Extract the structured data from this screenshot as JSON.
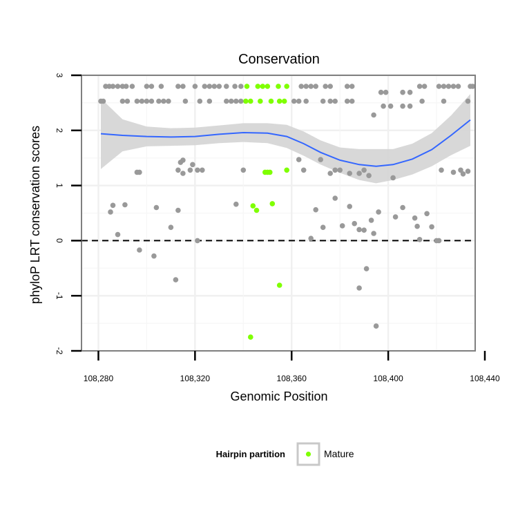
{
  "chart_data": {
    "type": "scatter",
    "title": "Conservation",
    "xlabel": "Genomic Position",
    "ylabel": "phyloP LRT conservation scores",
    "xlim": [
      108273,
      108436
    ],
    "ylim": [
      -2,
      3
    ],
    "xticks": [
      108280,
      108320,
      108360,
      108400,
      108440
    ],
    "xtick_labels": [
      "108,280",
      "108,320",
      "108,360",
      "108,400",
      "108,440"
    ],
    "yticks": [
      -2,
      -1,
      0,
      1,
      2,
      3
    ],
    "ytick_labels": [
      "-2",
      "-1",
      "0",
      "1",
      "2",
      "3"
    ],
    "grid": true,
    "reference_line": {
      "y": 0,
      "style": "dashed"
    },
    "legend": {
      "title": "Hairpin partition",
      "position": "bottom",
      "entries": [
        {
          "label": "Mature",
          "color": "#7fff00"
        }
      ]
    },
    "colors": {
      "background": "#ffffff",
      "other_points": "#999999",
      "mature_points": "#7fff00",
      "smooth_line": "#3366ff",
      "ribbon": "#d4d4d4"
    },
    "series": [
      {
        "name": "Mature",
        "points": [
          [
            108341.5,
            2.8
          ],
          [
            108346,
            2.8
          ],
          [
            108348,
            2.8
          ],
          [
            108350,
            2.8
          ],
          [
            108354.5,
            2.8
          ],
          [
            108358,
            2.8
          ],
          [
            108341,
            2.53
          ],
          [
            108343,
            2.53
          ],
          [
            108347,
            2.53
          ],
          [
            108351.5,
            2.53
          ],
          [
            108355,
            2.53
          ],
          [
            108357,
            2.53
          ],
          [
            108349,
            1.24
          ],
          [
            108350,
            1.24
          ],
          [
            108351,
            1.24
          ],
          [
            108358,
            1.28
          ],
          [
            108344,
            0.63
          ],
          [
            108345.5,
            0.55
          ],
          [
            108352,
            0.67
          ],
          [
            108355,
            -0.81
          ],
          [
            108343,
            -1.75
          ]
        ]
      },
      {
        "name": "",
        "points": [
          [
            108283,
            2.8
          ],
          [
            108284.5,
            2.8
          ],
          [
            108286,
            2.8
          ],
          [
            108288,
            2.8
          ],
          [
            108290,
            2.8
          ],
          [
            108291.5,
            2.8
          ],
          [
            108294,
            2.8
          ],
          [
            108300,
            2.8
          ],
          [
            108302,
            2.8
          ],
          [
            108306,
            2.8
          ],
          [
            108313,
            2.8
          ],
          [
            108315,
            2.8
          ],
          [
            108320,
            2.8
          ],
          [
            108324,
            2.8
          ],
          [
            108326,
            2.8
          ],
          [
            108328,
            2.8
          ],
          [
            108330,
            2.8
          ],
          [
            108333,
            2.8
          ],
          [
            108336.5,
            2.8
          ],
          [
            108339,
            2.8
          ],
          [
            108364,
            2.8
          ],
          [
            108366,
            2.8
          ],
          [
            108368,
            2.8
          ],
          [
            108370,
            2.8
          ],
          [
            108374,
            2.8
          ],
          [
            108376,
            2.8
          ],
          [
            108383,
            2.8
          ],
          [
            108385,
            2.8
          ],
          [
            108413,
            2.8
          ],
          [
            108415,
            2.8
          ],
          [
            108421,
            2.8
          ],
          [
            108423,
            2.8
          ],
          [
            108425,
            2.8
          ],
          [
            108427,
            2.8
          ],
          [
            108429,
            2.8
          ],
          [
            108434,
            2.8
          ],
          [
            108435,
            2.8
          ],
          [
            108281,
            2.53
          ],
          [
            108282,
            2.53
          ],
          [
            108290,
            2.53
          ],
          [
            108292,
            2.53
          ],
          [
            108296,
            2.53
          ],
          [
            108298,
            2.53
          ],
          [
            108300,
            2.53
          ],
          [
            108302,
            2.53
          ],
          [
            108305,
            2.53
          ],
          [
            108307,
            2.53
          ],
          [
            108309,
            2.53
          ],
          [
            108316,
            2.53
          ],
          [
            108322,
            2.53
          ],
          [
            108326,
            2.53
          ],
          [
            108333,
            2.53
          ],
          [
            108335,
            2.53
          ],
          [
            108337,
            2.53
          ],
          [
            108339,
            2.53
          ],
          [
            108361,
            2.53
          ],
          [
            108363,
            2.53
          ],
          [
            108366,
            2.53
          ],
          [
            108373,
            2.53
          ],
          [
            108376,
            2.53
          ],
          [
            108378,
            2.53
          ],
          [
            108383,
            2.53
          ],
          [
            108385,
            2.53
          ],
          [
            108414,
            2.53
          ],
          [
            108423,
            2.53
          ],
          [
            108433,
            2.53
          ],
          [
            108397,
            2.69
          ],
          [
            108399,
            2.69
          ],
          [
            108406,
            2.69
          ],
          [
            108409,
            2.69
          ],
          [
            108398,
            2.44
          ],
          [
            108401,
            2.44
          ],
          [
            108406,
            2.44
          ],
          [
            108409,
            2.44
          ],
          [
            108394,
            2.28
          ],
          [
            108315,
            1.46
          ],
          [
            108314,
            1.42
          ],
          [
            108313,
            1.28
          ],
          [
            108315,
            1.22
          ],
          [
            108318,
            1.28
          ],
          [
            108319,
            1.38
          ],
          [
            108321,
            1.28
          ],
          [
            108323,
            1.28
          ],
          [
            108296,
            1.24
          ],
          [
            108297,
            1.24
          ],
          [
            108340,
            1.28
          ],
          [
            108363,
            1.47
          ],
          [
            108365,
            1.28
          ],
          [
            108372,
            1.47
          ],
          [
            108376,
            1.22
          ],
          [
            108378,
            1.28
          ],
          [
            108380,
            1.28
          ],
          [
            108384,
            1.22
          ],
          [
            108388,
            1.22
          ],
          [
            108390,
            1.28
          ],
          [
            108392,
            1.18
          ],
          [
            108402,
            1.14
          ],
          [
            108422,
            1.28
          ],
          [
            108427,
            1.24
          ],
          [
            108430,
            1.28
          ],
          [
            108431,
            1.21
          ],
          [
            108433,
            1.26
          ],
          [
            108286,
            0.64
          ],
          [
            108285,
            0.52
          ],
          [
            108291,
            0.65
          ],
          [
            108304,
            0.6
          ],
          [
            108313,
            0.55
          ],
          [
            108288,
            0.11
          ],
          [
            108310,
            0.24
          ],
          [
            108321,
            0
          ],
          [
            108297,
            -0.17
          ],
          [
            108303,
            -0.28
          ],
          [
            108312,
            -0.71
          ],
          [
            108337,
            0.66
          ],
          [
            108368,
            0.04
          ],
          [
            108370,
            0.56
          ],
          [
            108373,
            0.24
          ],
          [
            108378,
            0.77
          ],
          [
            108381,
            0.27
          ],
          [
            108384,
            0.62
          ],
          [
            108386,
            0.31
          ],
          [
            108388,
            0.2
          ],
          [
            108390,
            0.19
          ],
          [
            108391,
            -0.51
          ],
          [
            108388,
            -0.86
          ],
          [
            108393,
            0.37
          ],
          [
            108394,
            0.13
          ],
          [
            108396,
            0.52
          ],
          [
            108395,
            -1.55
          ],
          [
            108403,
            0.43
          ],
          [
            108406,
            0.6
          ],
          [
            108411,
            0.41
          ],
          [
            108412,
            0.26
          ],
          [
            108416,
            0.49
          ],
          [
            108418,
            0.25
          ],
          [
            108420,
            0
          ],
          [
            108421,
            0
          ],
          [
            108413,
            0.02
          ]
        ]
      }
    ],
    "smooth": {
      "x": [
        108281,
        108290,
        108300,
        108310,
        108320,
        108330,
        108340,
        108350,
        108358,
        108365,
        108372,
        108380,
        108388,
        108395,
        108402,
        108410,
        108418,
        108426,
        108434
      ],
      "y": [
        1.94,
        1.91,
        1.89,
        1.88,
        1.89,
        1.93,
        1.96,
        1.95,
        1.89,
        1.76,
        1.6,
        1.46,
        1.38,
        1.35,
        1.38,
        1.48,
        1.65,
        1.91,
        2.19
      ],
      "lower": [
        1.3,
        1.62,
        1.71,
        1.72,
        1.73,
        1.77,
        1.79,
        1.77,
        1.68,
        1.54,
        1.38,
        1.23,
        1.1,
        1.04,
        1.1,
        1.2,
        1.35,
        1.55,
        1.72
      ],
      "upper": [
        2.58,
        2.2,
        2.07,
        2.04,
        2.05,
        2.09,
        2.13,
        2.13,
        2.1,
        1.98,
        1.82,
        1.69,
        1.66,
        1.66,
        1.66,
        1.76,
        1.95,
        2.27,
        2.66
      ]
    }
  }
}
